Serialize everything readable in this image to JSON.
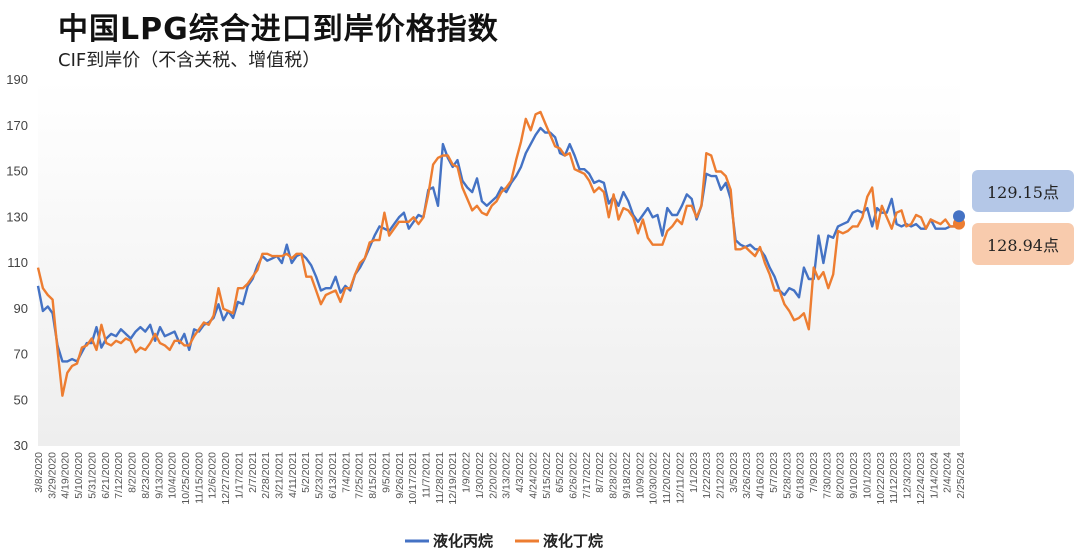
{
  "chart_data": {
    "type": "line",
    "title": "中国LPG综合进口到岸价格指数",
    "subtitle": "CIF到岸价（不含关税、增值税）",
    "ylim": [
      30,
      190
    ],
    "yticks": [
      30,
      50,
      70,
      90,
      110,
      130,
      150,
      170,
      190
    ],
    "xlabels": [
      "3/8/2020",
      "3/29/2020",
      "4/19/2020",
      "5/10/2020",
      "5/31/2020",
      "6/21/2020",
      "7/12/2020",
      "8/2/2020",
      "8/23/2020",
      "9/13/2020",
      "10/4/2020",
      "10/25/2020",
      "11/15/2020",
      "12/6/2020",
      "12/27/2020",
      "1/17/2021",
      "2/7/2021",
      "2/28/2021",
      "3/21/2021",
      "4/11/2021",
      "5/2/2021",
      "5/23/2021",
      "6/13/2021",
      "7/4/2021",
      "7/25/2021",
      "8/15/2021",
      "9/5/2021",
      "9/26/2021",
      "10/17/2021",
      "11/7/2021",
      "11/28/2021",
      "12/19/2021",
      "1/9/2022",
      "1/30/2022",
      "2/20/2022",
      "3/13/2022",
      "4/3/2022",
      "4/24/2022",
      "5/15/2022",
      "6/5/2022",
      "6/26/2022",
      "7/17/2022",
      "8/7/2022",
      "8/28/2022",
      "9/18/2022",
      "10/9/2022",
      "10/30/2022",
      "11/20/2022",
      "12/11/2022",
      "1/1/2023",
      "1/22/2023",
      "2/12/2023",
      "3/5/2023",
      "3/26/2023",
      "4/16/2023",
      "5/7/2023",
      "5/28/2023",
      "6/18/2023",
      "7/9/2023",
      "7/30/2023",
      "8/20/2023",
      "9/10/2023",
      "10/1/2023",
      "10/22/2023",
      "11/12/2023",
      "12/3/2023",
      "12/24/2023",
      "1/14/2024",
      "2/4/2024",
      "2/25/2024"
    ],
    "visible_xlabels": [
      "3/8/2020",
      "3/29/2020",
      "4/19/2020",
      "5/10/2020",
      "5/31/2020",
      "6/21/2020",
      "7/12/2020",
      "8/2/2020",
      "8/23/2020",
      "9/13/2020",
      "10/4/2020",
      "10/25/2020",
      "11/15/2020",
      "12/6/2020",
      "12/27/2020",
      "1/17/2021",
      "2/7/2021",
      "2/28/2021",
      "3/21/2021",
      "4/11/2021",
      "5/2/2021",
      "5/23/2021",
      "6/13/2021",
      "7/4/2021",
      "7/25/2021",
      "8/15/2021",
      "9/5/2021",
      "9/26/2021",
      "10/17/2021",
      "11/7/2021",
      "11/28/2021",
      "12/19/2021",
      "1/9/2022",
      "1/30/2022",
      "2/20/2022",
      "3/13/2022",
      "4/3/2022",
      "4/24/2022",
      "5/15/2022",
      "6/5/2022",
      "6/26/2022",
      "7/17/2022",
      "8/7/2022",
      "8/28/2022",
      "9/18/2022",
      "10/9/2022",
      "10/30/2022",
      "11/20/2022",
      "12/11/2022",
      "1/1/2023",
      "1/22/2023",
      "2/12/2023",
      "3/5/2023",
      "3/26/2023",
      "4/16/2023",
      "5/7/2023",
      "5/28/2023",
      "6/18/2023",
      "7/9/2023",
      "7/30/2023",
      "8/20/2023",
      "9/10/2023",
      "10/1/2023",
      "10/22/2023",
      "11/12/2023",
      "12/3/2023",
      "12/24/2023",
      "1/14/2024",
      "2/4/2024",
      "2/25/2024"
    ],
    "series": [
      {
        "name": "液化丙烷",
        "color": "#4472c4",
        "values": [
          100,
          89,
          91,
          88,
          74,
          67,
          67,
          68,
          67,
          71,
          75,
          75,
          82,
          73,
          77,
          79,
          78,
          81,
          79,
          77,
          80,
          82,
          80,
          83,
          76,
          82,
          78,
          79,
          80,
          75,
          79,
          72,
          81,
          80,
          83,
          84,
          86,
          92,
          85,
          89,
          86,
          93,
          92,
          100,
          103,
          109,
          113,
          111,
          112,
          113,
          110,
          118,
          110,
          113,
          114,
          112,
          109,
          104,
          98,
          99,
          99,
          104,
          97,
          100,
          98,
          105,
          108,
          112,
          117,
          122,
          126,
          125,
          124,
          127,
          130,
          132,
          125,
          128,
          131,
          130,
          142,
          143,
          135,
          162,
          156,
          152,
          155,
          146,
          143,
          141,
          147,
          137,
          135,
          137,
          139,
          143,
          141,
          145,
          148,
          152,
          158,
          162,
          166,
          169,
          167,
          167,
          165,
          158,
          157,
          162,
          157,
          151,
          151,
          149,
          145,
          146,
          145,
          136,
          139,
          135,
          141,
          137,
          131,
          128,
          131,
          134,
          130,
          131,
          122,
          134,
          131,
          131,
          135,
          140,
          138,
          129,
          135,
          149,
          148,
          148,
          142,
          145,
          138,
          120,
          118,
          117,
          118,
          116,
          116,
          113,
          108,
          104,
          98,
          96,
          99,
          98,
          95,
          108,
          103,
          103,
          122,
          110,
          122,
          121,
          126,
          127,
          128,
          132,
          133,
          132,
          134,
          126,
          134,
          132,
          132,
          138,
          127,
          126,
          127,
          126,
          127,
          125,
          125,
          129,
          125,
          125,
          125,
          126,
          126,
          129
        ]
      },
      {
        "name": "液化丁烷",
        "color": "#ed7d31",
        "values": [
          108,
          99,
          96,
          94,
          72,
          52,
          62,
          65,
          66,
          73,
          74,
          77,
          72,
          83,
          75,
          74,
          76,
          75,
          77,
          76,
          71,
          73,
          72,
          75,
          79,
          75,
          74,
          72,
          76,
          76,
          74,
          74,
          78,
          81,
          84,
          83,
          87,
          99,
          90,
          89,
          88,
          99,
          99,
          101,
          104,
          107,
          114,
          114,
          113,
          113,
          113,
          114,
          112,
          114,
          114,
          104,
          104,
          98,
          92,
          96,
          97,
          98,
          93,
          99,
          99,
          105,
          110,
          112,
          119,
          120,
          120,
          132,
          122,
          125,
          128,
          128,
          128,
          130,
          127,
          130,
          140,
          153,
          156,
          157,
          157,
          153,
          152,
          143,
          138,
          133,
          135,
          132,
          131,
          135,
          137,
          141,
          143,
          146,
          155,
          163,
          173,
          168,
          175,
          176,
          171,
          166,
          161,
          160,
          157,
          158,
          151,
          150,
          149,
          146,
          141,
          143,
          141,
          130,
          140,
          129,
          134,
          133,
          130,
          123,
          129,
          121,
          118,
          118,
          118,
          124,
          126,
          129,
          127,
          135,
          135,
          130,
          135,
          158,
          157,
          150,
          150,
          148,
          142,
          116,
          116,
          117,
          115,
          113,
          117,
          110,
          105,
          98,
          98,
          92,
          89,
          85,
          86,
          88,
          81,
          108,
          103,
          106,
          99,
          105,
          124,
          123,
          124,
          126,
          126,
          130,
          139,
          143,
          125,
          135,
          130,
          125,
          132,
          133,
          126,
          127,
          131,
          130,
          125,
          129,
          128,
          127,
          129,
          126,
          126,
          129
        ]
      }
    ],
    "legend": [
      "液化丙烷",
      "液化丁烷"
    ],
    "legend_position": "bottom-center",
    "annotations": [
      {
        "series": "液化丙烷",
        "text": "129.15点",
        "value": 129.15,
        "color": "#b4c7e7"
      },
      {
        "series": "液化丁烷",
        "text": "128.94点",
        "value": 128.94,
        "color": "#f8cbad"
      }
    ],
    "grid": false
  }
}
